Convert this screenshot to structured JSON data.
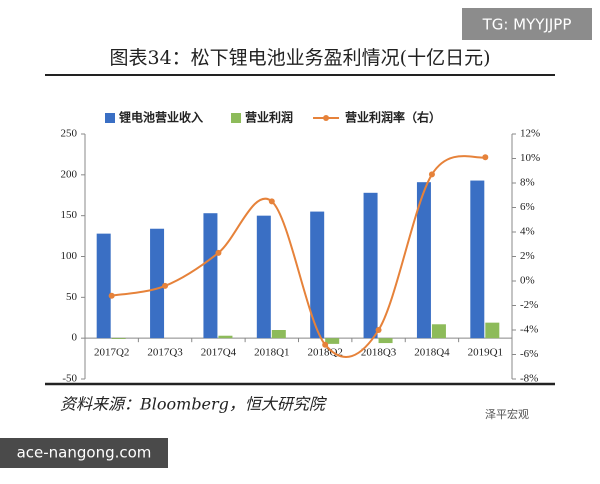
{
  "chart_data": {
    "type": "bar-line",
    "title": "图表34：松下锂电池业务盈利情况(十亿日元)",
    "source": "资料来源：Bloomberg，恒大研究院",
    "watermark": "TG: MYYJJPP",
    "site": "ace-nangong.com",
    "brand": "泽平宏观",
    "categories": [
      "2017Q2",
      "2017Q3",
      "2017Q4",
      "2018Q1",
      "2018Q2",
      "2018Q3",
      "2018Q4",
      "2019Q1"
    ],
    "series": [
      {
        "name": "锂电池营业收入",
        "type": "bar",
        "color": "#3a6fc4",
        "values": [
          128,
          134,
          153,
          150,
          155,
          178,
          191,
          193
        ]
      },
      {
        "name": "营业利润",
        "type": "bar",
        "color": "#8dbb5a",
        "values": [
          -1,
          0,
          3,
          10,
          -7,
          -6,
          17,
          19
        ]
      },
      {
        "name": "营业利润率（右）",
        "type": "line",
        "axis": "y2",
        "color": "#e6823a",
        "values": [
          -1.2,
          -0.4,
          2.3,
          6.5,
          -5.2,
          -4,
          8.7,
          10.1
        ]
      }
    ],
    "ylim": [
      -50,
      250
    ],
    "yticks": [
      -50,
      0,
      50,
      100,
      150,
      200,
      250
    ],
    "y2lim": [
      -8,
      12
    ],
    "y2ticks": [
      {
        "value": -8,
        "label": "-8%"
      },
      {
        "value": -6,
        "label": "-6%"
      },
      {
        "value": -4,
        "label": "-4%"
      },
      {
        "value": -2,
        "label": "-2%"
      },
      {
        "value": 0,
        "label": "0%"
      },
      {
        "value": 2,
        "label": "2%"
      },
      {
        "value": 4,
        "label": "4%"
      },
      {
        "value": 6,
        "label": "6%"
      },
      {
        "value": 8,
        "label": "8%"
      },
      {
        "value": 10,
        "label": "10%"
      },
      {
        "value": 12,
        "label": "12%"
      }
    ],
    "legend": "top"
  }
}
